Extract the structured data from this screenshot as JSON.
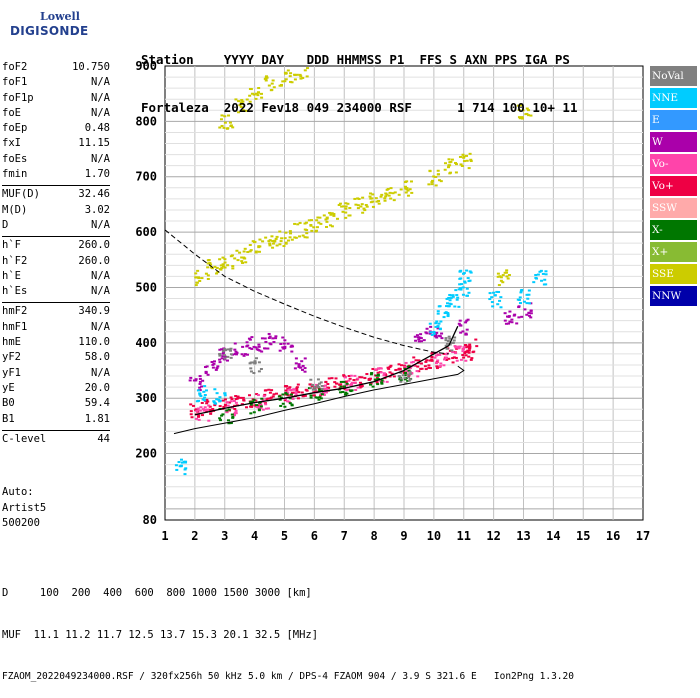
{
  "logo": {
    "word1": "Lowell",
    "word2": "DIGISONDE"
  },
  "header": {
    "line1": "Station    YYYY DAY   DDD HHMMSS P1  FFS S AXN PPS IGA PS",
    "line2": "Fortaleza  2022 Fev18 049 234000 RSF      1 714 100 10+ 11"
  },
  "params": {
    "group1": [
      {
        "label": "foF2",
        "value": "10.750"
      },
      {
        "label": "foF1",
        "value": "N/A"
      },
      {
        "label": "foF1p",
        "value": "N/A"
      },
      {
        "label": "foE",
        "value": "N/A"
      },
      {
        "label": "foEp",
        "value": "0.48"
      },
      {
        "label": "fxI",
        "value": "11.15"
      },
      {
        "label": "foEs",
        "value": "N/A"
      },
      {
        "label": "fmin",
        "value": "1.70"
      }
    ],
    "group2": [
      {
        "label": "MUF(D)",
        "value": "32.46"
      },
      {
        "label": "M(D)",
        "value": "3.02"
      },
      {
        "label": "D",
        "value": "N/A"
      }
    ],
    "group3": [
      {
        "label": "h`F",
        "value": "260.0"
      },
      {
        "label": "h`F2",
        "value": "260.0"
      },
      {
        "label": "h`E",
        "value": "N/A"
      },
      {
        "label": "h`Es",
        "value": "N/A"
      }
    ],
    "group4": [
      {
        "label": "hmF2",
        "value": "340.9"
      },
      {
        "label": "hmF1",
        "value": "N/A"
      },
      {
        "label": "hmE",
        "value": "110.0"
      },
      {
        "label": "yF2",
        "value": "58.0"
      },
      {
        "label": "yF1",
        "value": "N/A"
      },
      {
        "label": "yE",
        "value": "20.0"
      },
      {
        "label": "B0",
        "value": "59.4"
      },
      {
        "label": "B1",
        "value": "1.81"
      }
    ],
    "group5": [
      {
        "label": "C-level",
        "value": "44"
      }
    ]
  },
  "auto": {
    "line1": "Auto:",
    "line2": "Artist5",
    "line3": "500200"
  },
  "legend": [
    {
      "label": "NoVal",
      "color": "#808080"
    },
    {
      "label": "NNE",
      "color": "#00ccff"
    },
    {
      "label": "E",
      "color": "#3399ff"
    },
    {
      "label": "W",
      "color": "#aa00aa"
    },
    {
      "label": "Vo-",
      "color": "#ff44aa"
    },
    {
      "label": "Vo+",
      "color": "#ee0044"
    },
    {
      "label": "SSW",
      "color": "#ffaaaa"
    },
    {
      "label": "X-",
      "color": "#007700"
    },
    {
      "label": "X+",
      "color": "#88bb33"
    },
    {
      "label": "SSE",
      "color": "#cccc00"
    },
    {
      "label": "NNW",
      "color": "#0000aa"
    }
  ],
  "footer": {
    "line1": "D     100  200  400  600  800 1000 1500 3000 [km]",
    "line2": "MUF  11.1 11.2 11.7 12.5 13.7 15.3 20.1 32.5 [MHz]",
    "line3": "FZAOM_2022049234000.RSF / 320fx256h 50 kHz 5.0 km / DPS-4 FZAOM 904 / 3.9 S 321.6 E   Ion2Png 1.3.20"
  },
  "chart_data": {
    "type": "scatter",
    "xlim": [
      1,
      17
    ],
    "ylim": [
      80,
      900
    ],
    "x_ticks": [
      1,
      2,
      3,
      4,
      5,
      6,
      7,
      8,
      9,
      10,
      11,
      12,
      13,
      14,
      15,
      16,
      17
    ],
    "y_ticks": [
      80,
      200,
      300,
      400,
      500,
      600,
      700,
      800,
      900
    ],
    "grid": true,
    "legend_placement": "right",
    "clusters": [
      {
        "name": "Vo+",
        "color": "#ee0044",
        "points": [
          [
            2,
            280
          ],
          [
            2.5,
            285
          ],
          [
            3,
            290
          ],
          [
            3.5,
            292
          ],
          [
            4,
            300
          ],
          [
            4.5,
            305
          ],
          [
            5,
            310
          ],
          [
            5.5,
            315
          ],
          [
            6,
            320
          ],
          [
            6.5,
            325
          ],
          [
            7,
            330
          ],
          [
            7.5,
            335
          ],
          [
            8,
            342
          ],
          [
            8.5,
            348
          ],
          [
            9,
            355
          ],
          [
            9.5,
            362
          ],
          [
            10,
            370
          ],
          [
            10.5,
            380
          ],
          [
            11,
            385
          ],
          [
            11.2,
            395
          ]
        ]
      },
      {
        "name": "Vo-",
        "color": "#ff44aa",
        "points": [
          [
            2.2,
            275
          ],
          [
            3.2,
            285
          ],
          [
            4.2,
            295
          ],
          [
            5.2,
            305
          ],
          [
            6.2,
            318
          ],
          [
            7.2,
            330
          ],
          [
            8.2,
            342
          ],
          [
            9.2,
            355
          ],
          [
            10.2,
            372
          ],
          [
            10.8,
            383
          ]
        ]
      },
      {
        "name": "X-",
        "color": "#007700",
        "points": [
          [
            3,
            270
          ],
          [
            4,
            288
          ],
          [
            5,
            300
          ],
          [
            6,
            310
          ],
          [
            7,
            322
          ],
          [
            8,
            335
          ],
          [
            9,
            347
          ]
        ]
      },
      {
        "name": "W",
        "color": "#aa00aa",
        "points": [
          [
            2,
            330
          ],
          [
            2.5,
            355
          ],
          [
            3,
            380
          ],
          [
            3.5,
            390
          ],
          [
            4,
            400
          ],
          [
            4.5,
            405
          ],
          [
            5,
            400
          ],
          [
            5.5,
            360
          ],
          [
            9.5,
            415
          ],
          [
            10,
            420
          ],
          [
            11,
            430
          ],
          [
            12.5,
            450
          ],
          [
            13,
            460
          ]
        ]
      },
      {
        "name": "NNE",
        "color": "#00ccff",
        "points": [
          [
            10,
            430
          ],
          [
            10.3,
            460
          ],
          [
            10.6,
            480
          ],
          [
            10.9,
            500
          ],
          [
            11,
            520
          ],
          [
            12,
            480
          ],
          [
            13,
            485
          ],
          [
            13.5,
            520
          ],
          [
            2.2,
            310
          ],
          [
            2.8,
            305
          ],
          [
            1.5,
            178
          ]
        ]
      },
      {
        "name": "SSE",
        "color": "#cccc00",
        "points": [
          [
            2.2,
            520
          ],
          [
            2.6,
            540
          ],
          [
            3,
            550
          ],
          [
            3.5,
            560
          ],
          [
            4,
            575
          ],
          [
            4.5,
            585
          ],
          [
            5,
            590
          ],
          [
            5.5,
            605
          ],
          [
            6,
            615
          ],
          [
            6.5,
            625
          ],
          [
            7,
            640
          ],
          [
            7.5,
            650
          ],
          [
            8,
            660
          ],
          [
            8.5,
            668
          ],
          [
            9,
            680
          ],
          [
            10,
            700
          ],
          [
            10.5,
            720
          ],
          [
            11,
            730
          ],
          [
            3,
            800
          ],
          [
            3.5,
            830
          ],
          [
            4,
            850
          ],
          [
            4.5,
            870
          ],
          [
            5,
            880
          ],
          [
            5.5,
            890
          ],
          [
            12.3,
            520
          ],
          [
            13,
            820
          ]
        ]
      },
      {
        "name": "NoVal",
        "color": "#808080",
        "points": [
          [
            3,
            380
          ],
          [
            4,
            360
          ],
          [
            6,
            330
          ],
          [
            9,
            340
          ],
          [
            10.5,
            400
          ]
        ]
      }
    ],
    "profile_solid": [
      [
        1.3,
        236
      ],
      [
        2,
        245
      ],
      [
        3,
        255
      ],
      [
        4,
        265
      ],
      [
        5,
        278
      ],
      [
        6,
        290
      ],
      [
        7,
        303
      ],
      [
        8,
        315
      ],
      [
        9,
        325
      ],
      [
        10,
        335
      ],
      [
        10.8,
        343
      ],
      [
        11,
        350
      ],
      [
        10.8,
        358
      ]
    ],
    "profile_dashed": [
      [
        1,
        604
      ],
      [
        2,
        560
      ],
      [
        3,
        520
      ],
      [
        4,
        493
      ],
      [
        5,
        470
      ],
      [
        6,
        448
      ],
      [
        7,
        428
      ],
      [
        8,
        410
      ],
      [
        9,
        395
      ],
      [
        10,
        383
      ],
      [
        10.5,
        380
      ]
    ],
    "trace_black": [
      [
        2,
        270
      ],
      [
        3,
        282
      ],
      [
        4,
        292
      ],
      [
        5,
        300
      ],
      [
        6,
        310
      ],
      [
        7,
        318
      ],
      [
        8,
        330
      ],
      [
        9,
        350
      ],
      [
        9.5,
        365
      ],
      [
        10,
        380
      ],
      [
        10.5,
        395
      ],
      [
        10.8,
        430
      ]
    ]
  }
}
